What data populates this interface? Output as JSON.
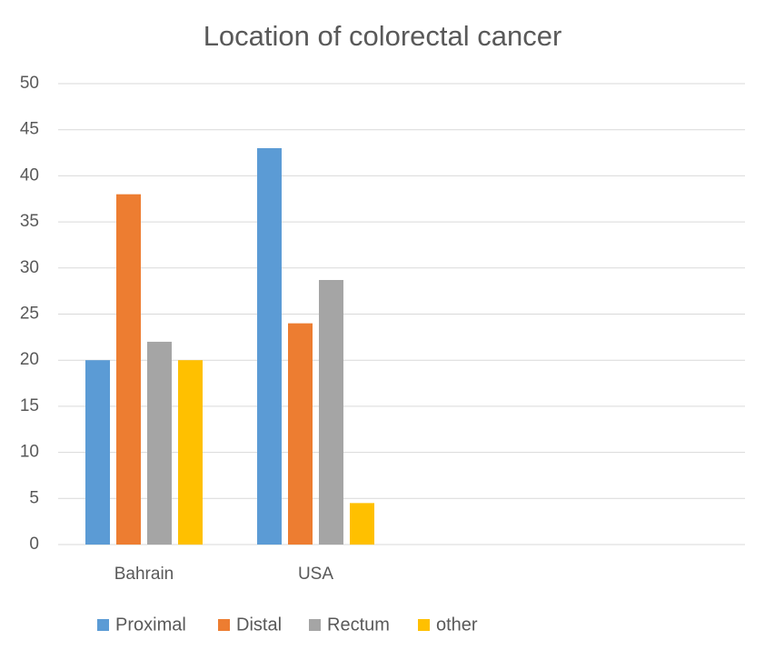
{
  "chart_data": {
    "type": "bar",
    "title": "Location of colorectal cancer",
    "categories": [
      "Bahrain",
      "USA",
      null,
      null
    ],
    "series": [
      {
        "name": "Proximal",
        "color": "#5b9bd5",
        "values": [
          20,
          43,
          null,
          null
        ]
      },
      {
        "name": "Distal",
        "color": "#ed7d31",
        "values": [
          38,
          24,
          null,
          null
        ]
      },
      {
        "name": "Rectum",
        "color": "#a5a5a5",
        "values": [
          22,
          28.7,
          null,
          null
        ]
      },
      {
        "name": "other",
        "color": "#ffc000",
        "values": [
          20,
          4.5,
          null,
          null
        ]
      }
    ],
    "ylim": [
      0,
      50
    ],
    "yticks": [
      0,
      5,
      10,
      15,
      20,
      25,
      30,
      35,
      40,
      45,
      50
    ],
    "grid": true,
    "legend": "bottom"
  }
}
